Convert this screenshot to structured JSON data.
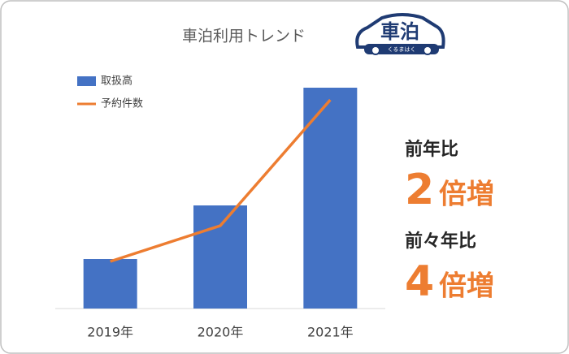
{
  "chart_data": {
    "type": "bar",
    "title": "車泊利用トレンド",
    "categories": [
      "2019年",
      "2020年",
      "2021年"
    ],
    "series": [
      {
        "name": "取扱高",
        "type": "bar",
        "color": "#4472c4",
        "values": [
          61,
          127,
          272
        ]
      },
      {
        "name": "予約件数",
        "type": "line",
        "color": "#ed7d31",
        "values": [
          58,
          102,
          257
        ]
      }
    ],
    "ylim": [
      0,
      290
    ],
    "legend": "top-left"
  },
  "logo": {
    "name": "車泊",
    "reading": "くるまはく"
  },
  "callouts": [
    {
      "label": "前年比",
      "number": "2",
      "unit": "倍増"
    },
    {
      "label": "前々年比",
      "number": "4",
      "unit": "倍増"
    }
  ]
}
